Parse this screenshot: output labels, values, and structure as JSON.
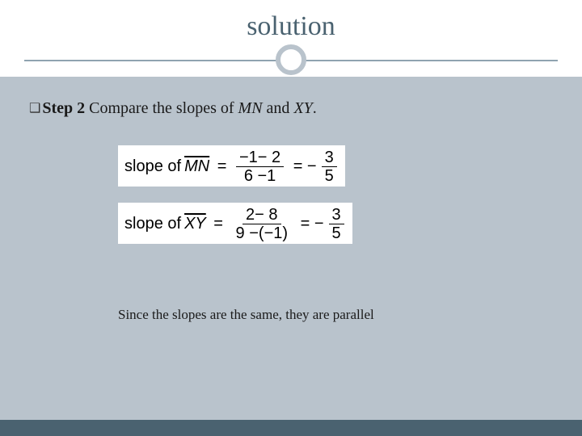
{
  "title": "solution",
  "step": {
    "label": "Step 2",
    "text": " Compare the slopes of ",
    "seg1": "MN",
    "mid": " and ",
    "seg2": "XY",
    "end": "."
  },
  "eq1": {
    "prefix": "slope of ",
    "seg": "MN",
    "num": "−1− 2",
    "den": "6 −1",
    "rnum": "3",
    "rden": "5"
  },
  "eq2": {
    "prefix": "slope of ",
    "seg": "XY",
    "num": "2− 8",
    "den": "9 −(−1)",
    "rnum": "3",
    "rden": "5"
  },
  "conclusion": "Since the slopes are the same, they are parallel",
  "colors": {
    "header_bg": "#ffffff",
    "body_bg": "#b9c3cc",
    "accent": "#4a6270",
    "divider": "#8fa3b0"
  }
}
